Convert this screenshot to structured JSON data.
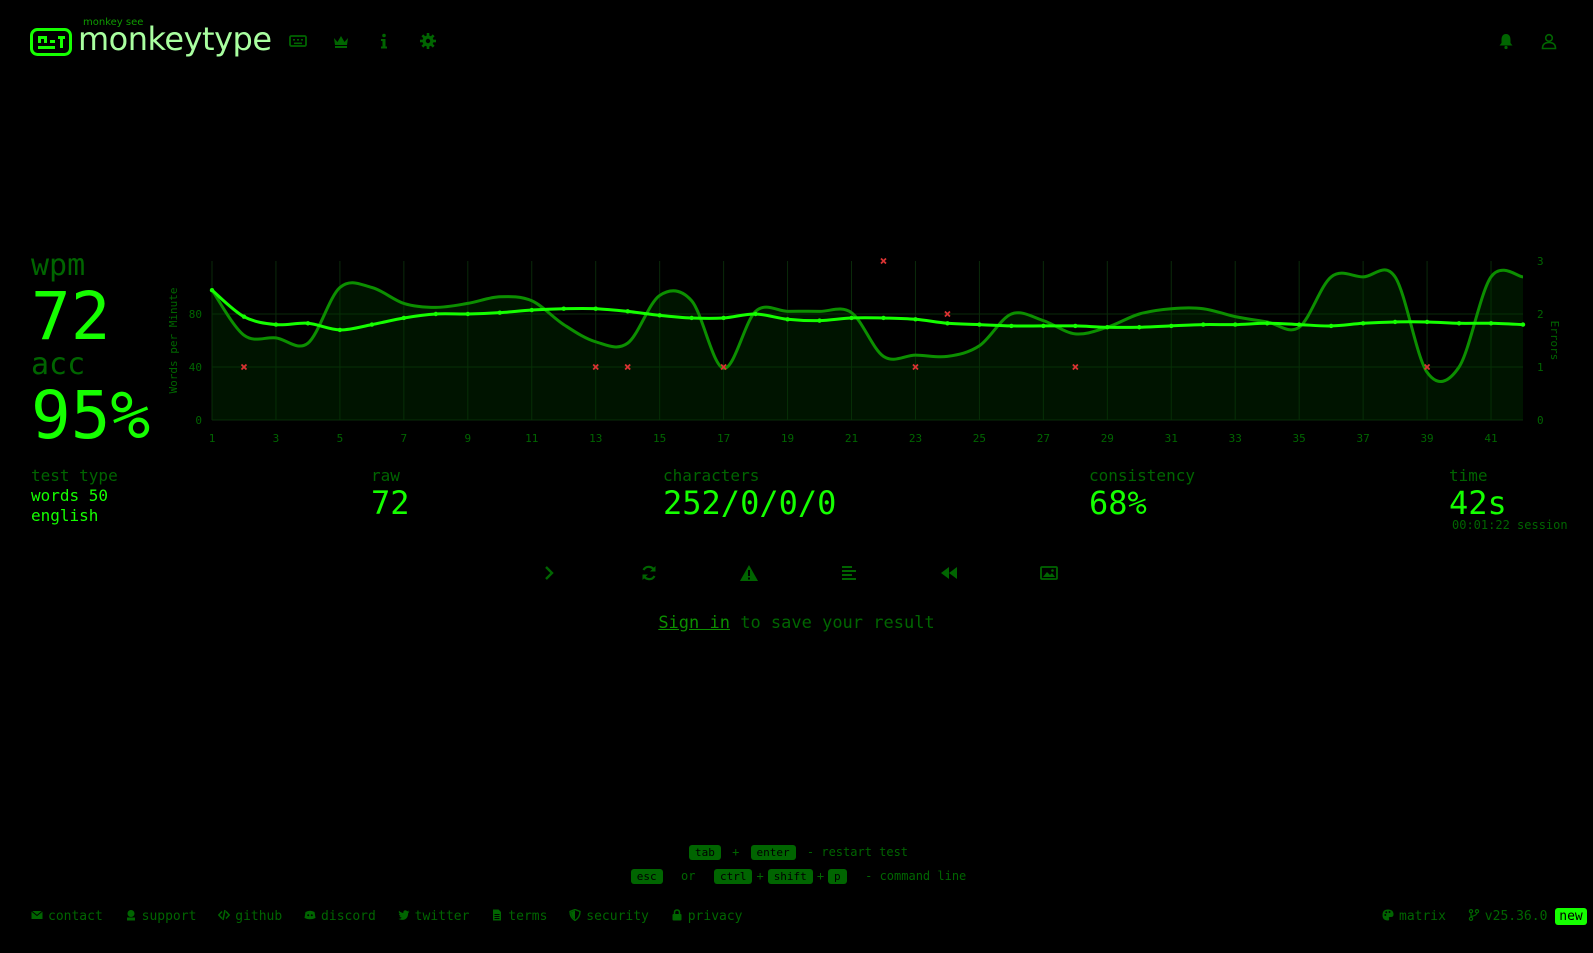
{
  "header": {
    "logo_top": "monkey see",
    "logo_text": "monkeytype",
    "nav": [
      {
        "name": "keyboard-icon"
      },
      {
        "name": "crown-icon"
      },
      {
        "name": "info-icon"
      },
      {
        "name": "gear-icon"
      }
    ]
  },
  "stats": {
    "wpm_label": "wpm",
    "wpm_value": "72",
    "acc_label": "acc",
    "acc_value": "95%",
    "test_type_label": "test type",
    "test_type_line1": "words 50",
    "test_type_line2": "english",
    "raw_label": "raw",
    "raw_value": "72",
    "characters_label": "characters",
    "characters_value": "252/0/0/0",
    "consistency_label": "consistency",
    "consistency_value": "68%",
    "time_label": "time",
    "time_value": "42s",
    "session": "00:01:22 session"
  },
  "chart_data": {
    "type": "line",
    "ylabel": "Words per Minute",
    "y2label": "Errors",
    "x": [
      1,
      2,
      3,
      4,
      5,
      6,
      7,
      8,
      9,
      10,
      11,
      12,
      13,
      14,
      15,
      16,
      17,
      18,
      19,
      20,
      21,
      22,
      23,
      24,
      25,
      26,
      27,
      28,
      29,
      30,
      31,
      32,
      33,
      34,
      35,
      36,
      37,
      38,
      39,
      40,
      41,
      42
    ],
    "xticks": [
      1,
      3,
      5,
      7,
      9,
      11,
      13,
      15,
      17,
      19,
      21,
      23,
      25,
      27,
      29,
      31,
      33,
      35,
      37,
      39,
      41
    ],
    "ylim": [
      0,
      120
    ],
    "yticks": [
      0,
      40,
      80
    ],
    "y2lim": [
      0,
      3
    ],
    "y2ticks": [
      0,
      1,
      2,
      3
    ],
    "series": [
      {
        "name": "wpm",
        "values": [
          98,
          78,
          72,
          73,
          68,
          72,
          77,
          80,
          80,
          81,
          83,
          84,
          84,
          82,
          79,
          77,
          77,
          80,
          76,
          75,
          77,
          77,
          76,
          73,
          72,
          71,
          71,
          71,
          70,
          70,
          71,
          72,
          72,
          73,
          72,
          71,
          73,
          74,
          74,
          73,
          73,
          72
        ]
      },
      {
        "name": "raw",
        "values": [
          98,
          64,
          62,
          58,
          100,
          100,
          88,
          85,
          88,
          93,
          90,
          72,
          59,
          58,
          94,
          90,
          39,
          82,
          82,
          82,
          81,
          48,
          49,
          48,
          56,
          80,
          75,
          65,
          70,
          80,
          84,
          84,
          78,
          74,
          70,
          108,
          108,
          108,
          36,
          40,
          108,
          108
        ]
      }
    ],
    "errors": [
      {
        "x": 2,
        "count": 1
      },
      {
        "x": 13,
        "count": 1
      },
      {
        "x": 14,
        "count": 1
      },
      {
        "x": 17,
        "count": 1
      },
      {
        "x": 22,
        "count": 3
      },
      {
        "x": 23,
        "count": 1
      },
      {
        "x": 24,
        "count": 2
      },
      {
        "x": 28,
        "count": 1
      },
      {
        "x": 39,
        "count": 1
      }
    ]
  },
  "buttons": [
    {
      "name": "next-test-button",
      "icon": "chevron-right-icon"
    },
    {
      "name": "restart-test-button",
      "icon": "refresh-icon"
    },
    {
      "name": "practice-mistakes-button",
      "icon": "warning-icon"
    },
    {
      "name": "words-history-button",
      "icon": "align-left-icon"
    },
    {
      "name": "replay-button",
      "icon": "backward-icon"
    },
    {
      "name": "screenshot-button",
      "icon": "image-icon"
    }
  ],
  "save": {
    "link": "Sign in",
    "text": " to save your result"
  },
  "hints": {
    "tab": "tab",
    "plus": "+",
    "enter": "enter",
    "restart": "- restart test",
    "esc": "esc",
    "or": "or",
    "ctrl": "ctrl",
    "shift": "shift",
    "p": "p",
    "cmd": "- command line"
  },
  "footer": {
    "contact": "contact",
    "support": "support",
    "github": "github",
    "discord": "discord",
    "twitter": "twitter",
    "terms": "terms",
    "security": "security",
    "privacy": "privacy",
    "theme": "matrix",
    "version": "v25.36.0",
    "new_badge": "new"
  },
  "colors": {
    "main": "#15ff00",
    "sub": "#006500",
    "bg": "#000000",
    "error": "#da3333"
  }
}
